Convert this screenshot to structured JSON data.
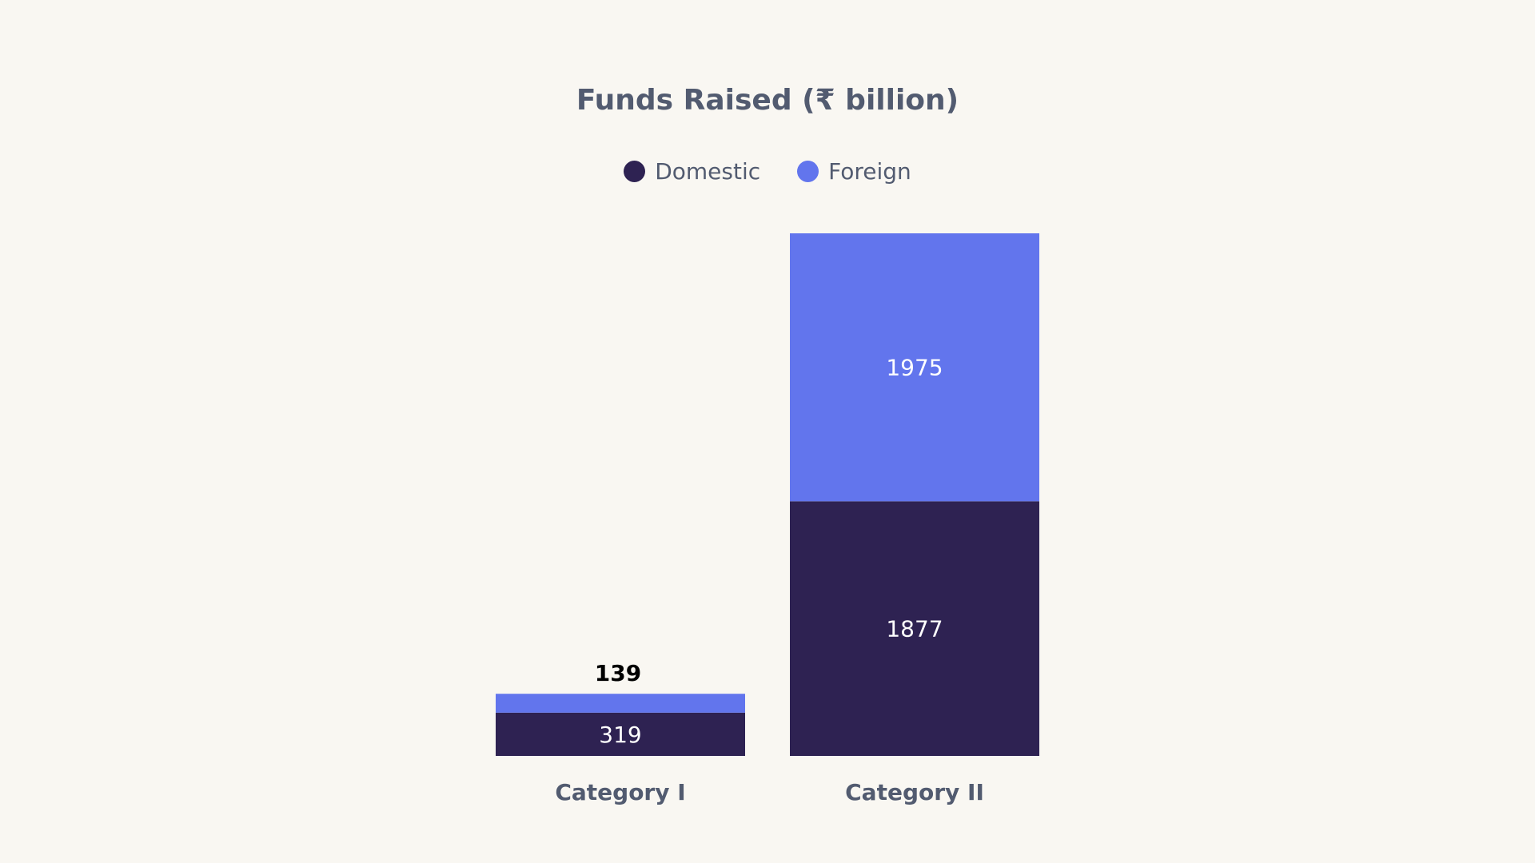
{
  "chart_data": {
    "type": "bar",
    "stacked": true,
    "title": "Funds Raised (₹ billion)",
    "categories": [
      "Category I",
      "Category II"
    ],
    "series": [
      {
        "name": "Domestic",
        "values": [
          319,
          1877
        ],
        "color": "#2e2252"
      },
      {
        "name": "Foreign",
        "values": [
          139,
          1975
        ],
        "color": "#6275ed"
      }
    ],
    "data_labels": {
      "Domestic": [
        "319",
        "1877"
      ],
      "Foreign": [
        "139",
        "1975"
      ]
    },
    "legend_position": "top-center",
    "grid": false,
    "axes_visible": false
  }
}
